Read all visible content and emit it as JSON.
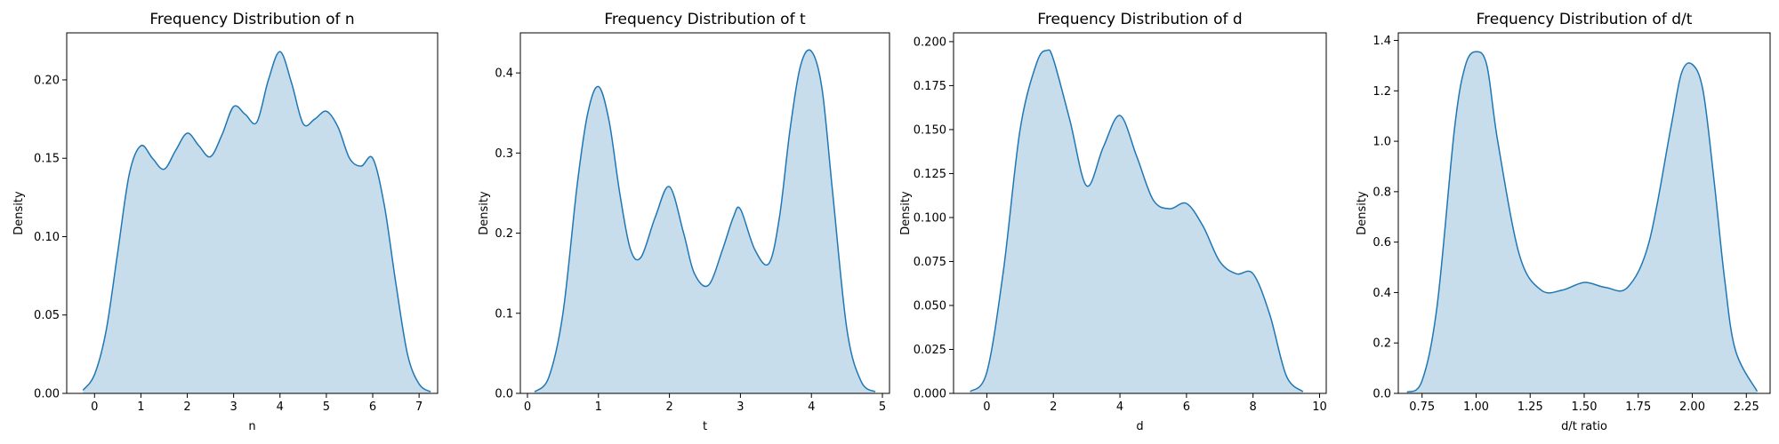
{
  "chart_data": [
    {
      "type": "area",
      "title": "Frequency Distribution of n",
      "xlabel": "n",
      "ylabel": "Density",
      "xlim": [
        -0.6,
        7.4
      ],
      "ylim": [
        0,
        0.23
      ],
      "xticks": [
        0,
        1,
        2,
        3,
        4,
        5,
        6,
        7
      ],
      "xtick_labels": [
        "0",
        "1",
        "2",
        "3",
        "4",
        "5",
        "6",
        "7"
      ],
      "yticks": [
        0,
        0.05,
        0.1,
        0.15,
        0.2
      ],
      "ytick_labels": [
        "0.00",
        "0.05",
        "0.10",
        "0.15",
        "0.20"
      ],
      "grid": false,
      "series": [
        {
          "color": "#1f77b4",
          "x": [
            -0.25,
            0,
            0.25,
            0.5,
            0.75,
            1.0,
            1.25,
            1.5,
            1.75,
            2.0,
            2.25,
            2.5,
            2.75,
            3.0,
            3.25,
            3.5,
            3.75,
            4.0,
            4.25,
            4.5,
            4.75,
            5.0,
            5.25,
            5.5,
            5.75,
            6.0,
            6.25,
            6.5,
            6.75,
            7.0,
            7.25
          ],
          "y": [
            0.002,
            0.012,
            0.04,
            0.09,
            0.14,
            0.158,
            0.15,
            0.143,
            0.155,
            0.166,
            0.158,
            0.151,
            0.165,
            0.183,
            0.178,
            0.173,
            0.2,
            0.218,
            0.198,
            0.172,
            0.175,
            0.18,
            0.17,
            0.15,
            0.145,
            0.15,
            0.12,
            0.07,
            0.025,
            0.006,
            0.001
          ]
        }
      ]
    },
    {
      "type": "area",
      "title": "Frequency Distribution of t",
      "xlabel": "t",
      "ylabel": "Density",
      "xlim": [
        -0.1,
        5.1
      ],
      "ylim": [
        0,
        0.45
      ],
      "xticks": [
        0,
        1,
        2,
        3,
        4,
        5
      ],
      "xtick_labels": [
        "0",
        "1",
        "2",
        "3",
        "4",
        "5"
      ],
      "yticks": [
        0,
        0.1,
        0.2,
        0.3,
        0.4
      ],
      "ytick_labels": [
        "0.0",
        "0.1",
        "0.2",
        "0.3",
        "0.4"
      ],
      "grid": false,
      "series": [
        {
          "color": "#1f77b4",
          "x": [
            0.1,
            0.3,
            0.5,
            0.7,
            0.85,
            1.0,
            1.15,
            1.3,
            1.45,
            1.6,
            1.8,
            2.0,
            2.2,
            2.35,
            2.55,
            2.75,
            2.9,
            3.0,
            3.2,
            3.4,
            3.55,
            3.7,
            3.85,
            4.0,
            4.15,
            4.3,
            4.5,
            4.7,
            4.9
          ],
          "y": [
            0.002,
            0.02,
            0.1,
            0.26,
            0.35,
            0.383,
            0.34,
            0.25,
            0.18,
            0.17,
            0.22,
            0.258,
            0.2,
            0.15,
            0.135,
            0.18,
            0.22,
            0.23,
            0.18,
            0.162,
            0.22,
            0.33,
            0.41,
            0.427,
            0.38,
            0.25,
            0.08,
            0.015,
            0.002
          ]
        }
      ]
    },
    {
      "type": "area",
      "title": "Frequency Distribution of d",
      "xlabel": "d",
      "ylabel": "Density",
      "xlim": [
        -1.0,
        10.2
      ],
      "ylim": [
        0,
        0.205
      ],
      "xticks": [
        0,
        2,
        4,
        6,
        8,
        10
      ],
      "xtick_labels": [
        "0",
        "2",
        "4",
        "6",
        "8",
        "10"
      ],
      "yticks": [
        0,
        0.025,
        0.05,
        0.075,
        0.1,
        0.125,
        0.15,
        0.175,
        0.2
      ],
      "ytick_labels": [
        "0.000",
        "0.025",
        "0.050",
        "0.075",
        "0.100",
        "0.125",
        "0.150",
        "0.175",
        "0.200"
      ],
      "grid": false,
      "series": [
        {
          "color": "#1f77b4",
          "x": [
            -0.5,
            0,
            0.5,
            1.0,
            1.5,
            1.8,
            2.0,
            2.5,
            3.0,
            3.5,
            4.0,
            4.5,
            5.0,
            5.5,
            6.0,
            6.5,
            7.0,
            7.5,
            8.0,
            8.5,
            9.0,
            9.5
          ],
          "y": [
            0.001,
            0.012,
            0.07,
            0.15,
            0.188,
            0.195,
            0.19,
            0.155,
            0.118,
            0.14,
            0.158,
            0.135,
            0.11,
            0.105,
            0.108,
            0.095,
            0.075,
            0.068,
            0.068,
            0.045,
            0.01,
            0.001
          ]
        }
      ]
    },
    {
      "type": "area",
      "title": "Frequency Distribution of d/t",
      "xlabel": "d/t ratio",
      "ylabel": "Density",
      "xlim": [
        0.64,
        2.36
      ],
      "ylim": [
        0,
        1.43
      ],
      "xticks": [
        0.75,
        1.0,
        1.25,
        1.5,
        1.75,
        2.0,
        2.25
      ],
      "xtick_labels": [
        "0.75",
        "1.00",
        "1.25",
        "1.50",
        "1.75",
        "2.00",
        "2.25"
      ],
      "yticks": [
        0,
        0.2,
        0.4,
        0.6,
        0.8,
        1.0,
        1.2,
        1.4
      ],
      "ytick_labels": [
        "0.0",
        "0.2",
        "0.4",
        "0.6",
        "0.8",
        "1.0",
        "1.2",
        "1.4"
      ],
      "grid": false,
      "series": [
        {
          "color": "#1f77b4",
          "x": [
            0.68,
            0.75,
            0.82,
            0.9,
            0.95,
            1.0,
            1.05,
            1.1,
            1.2,
            1.3,
            1.4,
            1.5,
            1.6,
            1.7,
            1.8,
            1.9,
            1.95,
            2.0,
            2.05,
            2.1,
            2.15,
            2.2,
            2.3
          ],
          "y": [
            0.005,
            0.05,
            0.35,
            1.05,
            1.3,
            1.355,
            1.3,
            1.0,
            0.55,
            0.41,
            0.41,
            0.44,
            0.42,
            0.42,
            0.6,
            1.05,
            1.27,
            1.305,
            1.2,
            0.85,
            0.45,
            0.17,
            0.008
          ]
        }
      ]
    }
  ]
}
